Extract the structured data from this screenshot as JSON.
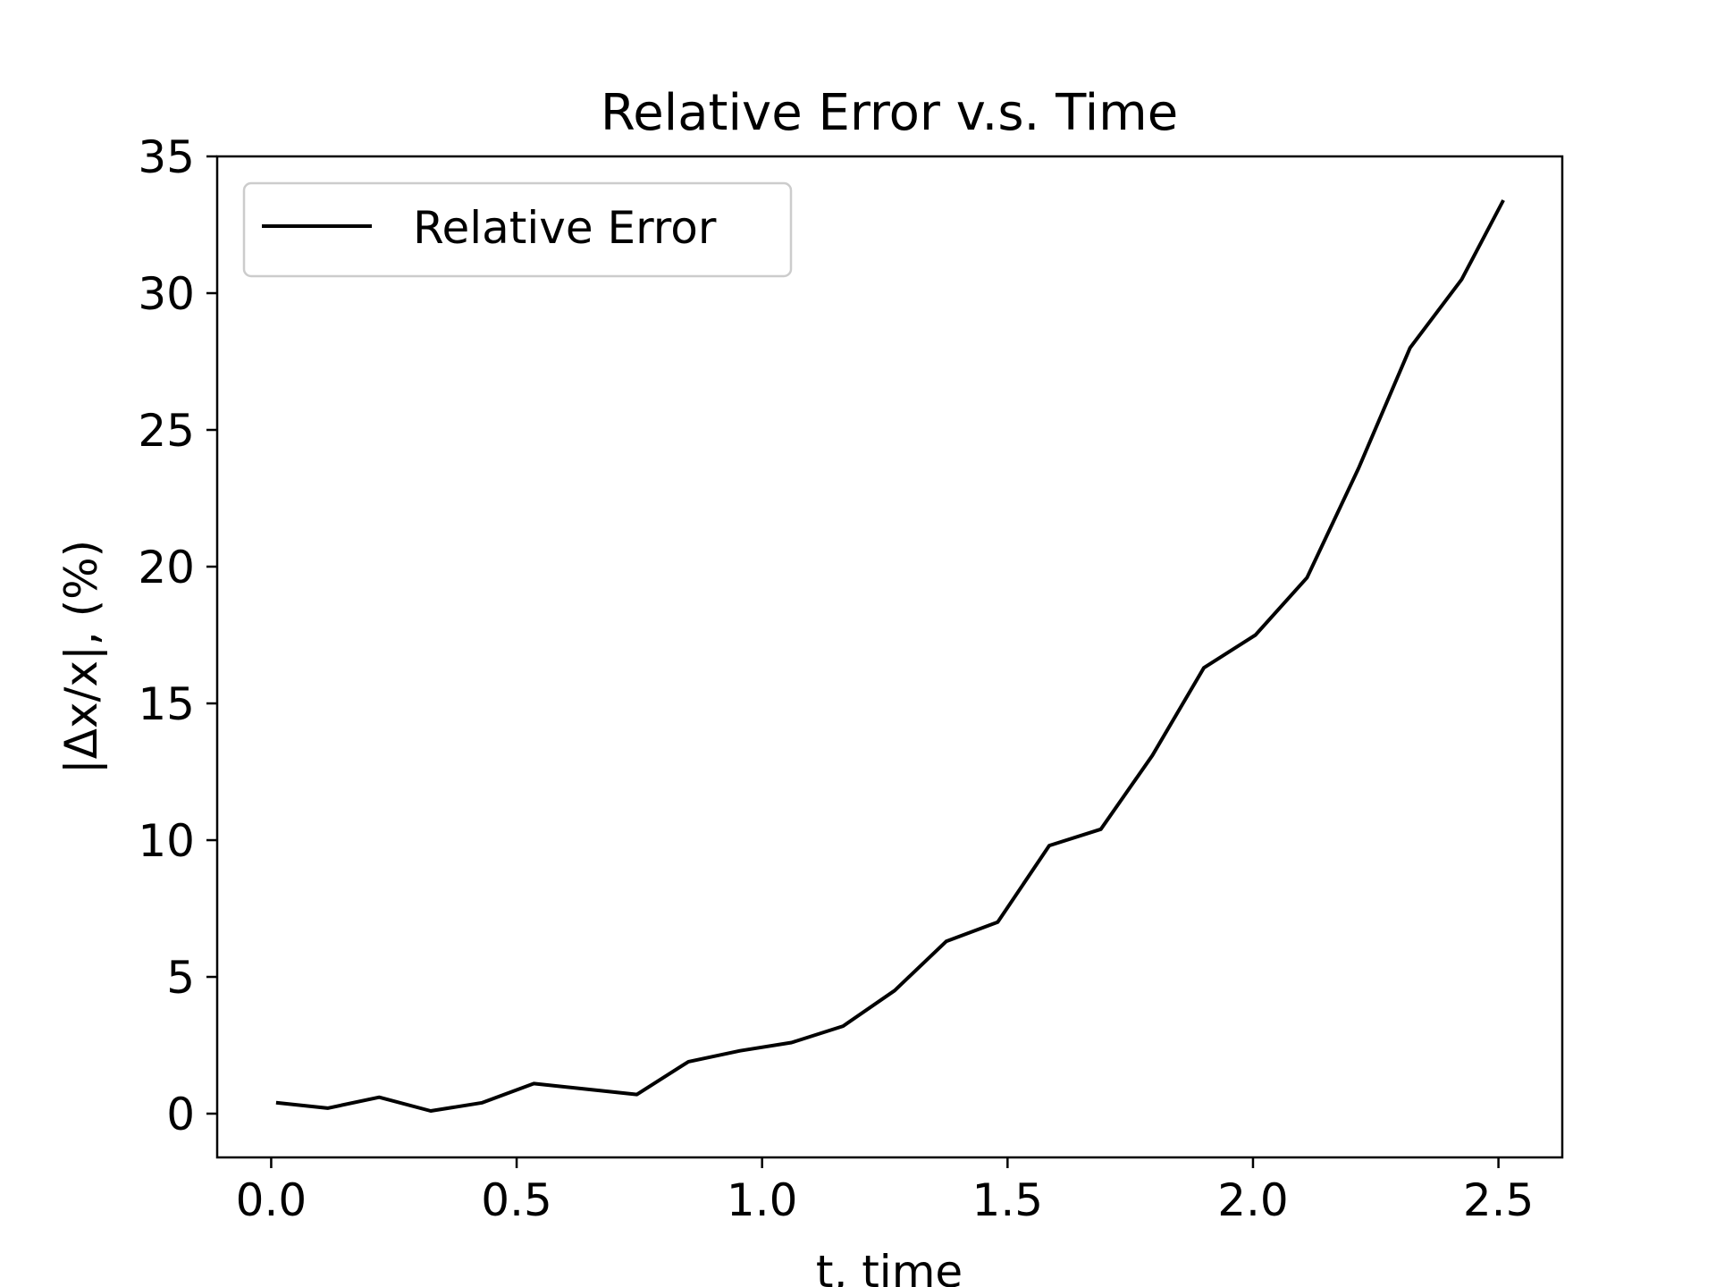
{
  "chart_data": {
    "type": "line",
    "title": "Relative Error v.s. Time",
    "xlabel": "t, time",
    "ylabel": "|Δx/x|, (%)",
    "xlim": [
      -0.11,
      2.63
    ],
    "ylim": [
      -1.6,
      35
    ],
    "xticks": [
      0.0,
      0.5,
      1.0,
      1.5,
      2.0,
      2.5
    ],
    "xtick_labels": [
      "0.0",
      "0.5",
      "1.0",
      "1.5",
      "2.0",
      "2.5"
    ],
    "yticks": [
      0,
      5,
      10,
      15,
      20,
      25,
      30,
      35
    ],
    "ytick_labels": [
      "0",
      "5",
      "10",
      "15",
      "20",
      "25",
      "30",
      "35"
    ],
    "grid": false,
    "legend_position": "top-left",
    "series": [
      {
        "name": "Relative Error",
        "color": "#000000",
        "x": [
          0.01,
          0.115,
          0.22,
          0.325,
          0.43,
          0.535,
          0.64,
          0.745,
          0.85,
          0.955,
          1.06,
          1.165,
          1.27,
          1.375,
          1.48,
          1.585,
          1.69,
          1.795,
          1.9,
          2.005,
          2.11,
          2.215,
          2.32,
          2.425,
          2.51
        ],
        "y": [
          0.4,
          0.2,
          0.6,
          0.1,
          0.4,
          1.1,
          0.9,
          0.7,
          1.9,
          2.3,
          2.6,
          3.2,
          4.5,
          6.3,
          7.0,
          9.8,
          10.4,
          13.1,
          16.3,
          17.5,
          19.6,
          23.6,
          28.0,
          30.5,
          33.4
        ]
      }
    ]
  }
}
